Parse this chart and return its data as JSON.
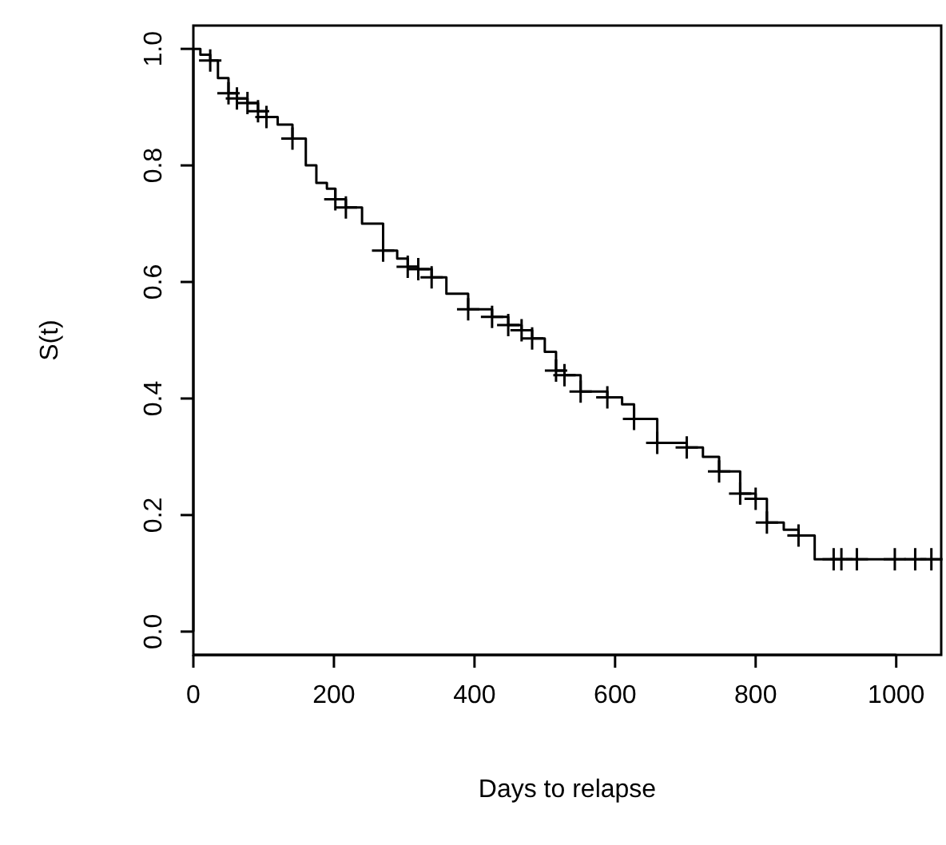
{
  "chart_data": {
    "type": "step",
    "xlabel": "Days to relapse",
    "ylabel": "S(t)",
    "xlim": [
      0,
      1064
    ],
    "ylim": [
      -0.04,
      1.04
    ],
    "xticks": [
      0,
      200,
      400,
      600,
      800,
      1000
    ],
    "yticks": [
      {
        "value": 0,
        "label": "0.0"
      },
      0.2,
      0.4,
      0.6,
      0.8,
      {
        "value": 1,
        "label": "1.0"
      }
    ],
    "grid": false,
    "series": [
      {
        "color": "#000000",
        "marker": "none",
        "x": [
          0,
          10,
          24,
          35,
          50,
          62,
          77,
          92,
          104,
          120,
          141,
          160,
          175,
          190,
          202,
          217,
          240,
          270,
          290,
          305,
          320,
          339,
          360,
          391,
          425,
          448,
          467,
          482,
          500,
          516,
          528,
          551,
          589,
          610,
          627,
          660,
          702,
          725,
          748,
          778,
          800,
          816,
          840,
          861,
          884,
          1064
        ],
        "values": [
          1,
          0.99,
          0.98,
          0.95,
          0.924,
          0.915,
          0.907,
          0.893,
          0.883,
          0.87,
          0.846,
          0.8,
          0.77,
          0.76,
          0.742,
          0.728,
          0.7,
          0.654,
          0.64,
          0.626,
          0.622,
          0.608,
          0.58,
          0.553,
          0.54,
          0.526,
          0.517,
          0.503,
          0.48,
          0.448,
          0.44,
          0.412,
          0.402,
          0.39,
          0.365,
          0.324,
          0.316,
          0.3,
          0.275,
          0.237,
          0.228,
          0.187,
          0.175,
          0.165,
          0.124,
          0.124
        ]
      },
      {
        "type": "scatter",
        "color": "#000000",
        "marker": "cross",
        "x": [
          24,
          50,
          62,
          77,
          92,
          104,
          141,
          202,
          217,
          270,
          305,
          320,
          339,
          391,
          425,
          448,
          467,
          482,
          516,
          528,
          551,
          589,
          627,
          660,
          702,
          748,
          778,
          800,
          816,
          861,
          911,
          922,
          944,
          998,
          1027,
          1050
        ],
        "values": [
          0.98,
          0.924,
          0.915,
          0.907,
          0.893,
          0.883,
          0.846,
          0.742,
          0.728,
          0.654,
          0.626,
          0.622,
          0.608,
          0.553,
          0.54,
          0.526,
          0.517,
          0.503,
          0.448,
          0.44,
          0.412,
          0.402,
          0.365,
          0.324,
          0.316,
          0.275,
          0.237,
          0.228,
          0.187,
          0.165,
          0.124,
          0.124,
          0.124,
          0.124,
          0.124,
          0.124
        ]
      }
    ]
  }
}
